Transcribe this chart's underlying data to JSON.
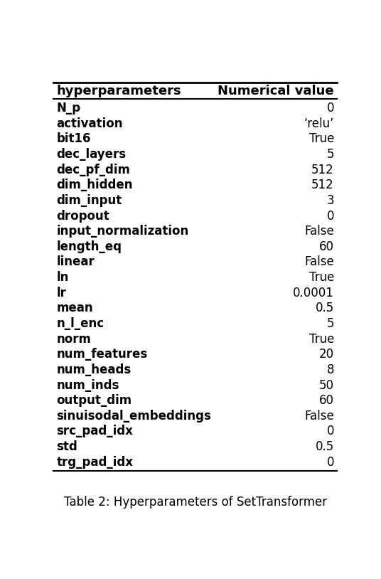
{
  "title": "Table 2: Hyperparameters of SetTransformer",
  "col_headers": [
    "hyperparameters",
    "Numerical value"
  ],
  "rows": [
    [
      "N_p",
      "0"
    ],
    [
      "activation",
      "‘relu’"
    ],
    [
      "bit16",
      "True"
    ],
    [
      "dec_layers",
      "5"
    ],
    [
      "dec_pf_dim",
      "512"
    ],
    [
      "dim_hidden",
      "512"
    ],
    [
      "dim_input",
      "3"
    ],
    [
      "dropout",
      "0"
    ],
    [
      "input_normalization",
      "False"
    ],
    [
      "length_eq",
      "60"
    ],
    [
      "linear",
      "False"
    ],
    [
      "ln",
      "True"
    ],
    [
      "lr",
      "0.0001"
    ],
    [
      "mean",
      "0.5"
    ],
    [
      "n_l_enc",
      "5"
    ],
    [
      "norm",
      "True"
    ],
    [
      "num_features",
      "20"
    ],
    [
      "num_heads",
      "8"
    ],
    [
      "num_inds",
      "50"
    ],
    [
      "output_dim",
      "60"
    ],
    [
      "sinuisodal_embeddings",
      "False"
    ],
    [
      "src_pad_idx",
      "0"
    ],
    [
      "std",
      "0.5"
    ],
    [
      "trg_pad_idx",
      "0"
    ]
  ],
  "fig_width": 5.36,
  "fig_height": 8.14,
  "dpi": 100
}
